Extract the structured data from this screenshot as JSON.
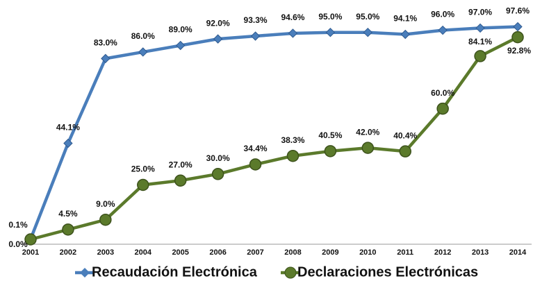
{
  "chart_data": {
    "type": "line",
    "categories": [
      "2001",
      "2002",
      "2003",
      "2004",
      "2005",
      "2006",
      "2007",
      "2008",
      "2009",
      "2010",
      "2011",
      "2012",
      "2013",
      "2014"
    ],
    "series": [
      {
        "name": "Recaudación Electrónica",
        "color": "#4a7ebb",
        "marker": "diamond",
        "values": [
          0.1,
          44.1,
          83.0,
          86.0,
          89.0,
          92.0,
          93.3,
          94.6,
          95.0,
          95.0,
          94.1,
          96.0,
          97.0,
          97.6
        ],
        "value_labels": [
          "0.1%",
          "44.1%",
          "83.0%",
          "86.0%",
          "89.0%",
          "92.0%",
          "93.3%",
          "94.6%",
          "95.0%",
          "95.0%",
          "94.1%",
          "96.0%",
          "97.0%",
          "97.6%"
        ]
      },
      {
        "name": "Declaraciones Electrónicas",
        "color": "#5b7a2b",
        "marker": "circle",
        "values": [
          0.0,
          4.5,
          9.0,
          25.0,
          27.0,
          30.0,
          34.4,
          38.3,
          40.5,
          42.0,
          40.4,
          60.0,
          84.1,
          92.8
        ],
        "value_labels": [
          "0.0%",
          "4.5%",
          "9.0%",
          "25.0%",
          "27.0%",
          "30.0%",
          "34.4%",
          "38.3%",
          "40.5%",
          "42.0%",
          "40.4%",
          "60.0%",
          "84.1%",
          "92.8%"
        ]
      }
    ],
    "ylim": [
      0,
      100
    ],
    "grid": false,
    "legend": "bottom"
  }
}
